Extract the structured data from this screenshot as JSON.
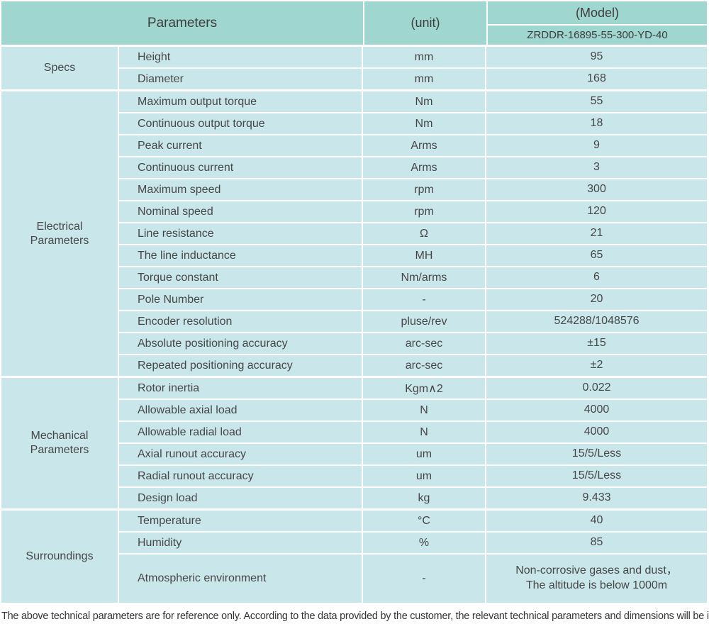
{
  "colors": {
    "header_bg": "#9fd7d0",
    "cell_bg": "#c9e6eb",
    "border": "#ffffff",
    "text": "#474747",
    "header_text": "#3d3d3d"
  },
  "header": {
    "parameters_label": "Parameters",
    "unit_label": "(unit)",
    "model_label": "(Model)",
    "model_value": "ZRDDR-16895-55-300-YD-40"
  },
  "sections": [
    {
      "name": "Specs",
      "rows": [
        {
          "param": "Height",
          "unit": "mm",
          "value": "95"
        },
        {
          "param": "Diameter",
          "unit": "mm",
          "value": "168"
        }
      ]
    },
    {
      "name": "Electrical\nParameters",
      "rows": [
        {
          "param": "Maximum output torque",
          "unit": "Nm",
          "value": "55"
        },
        {
          "param": "Continuous output torque",
          "unit": "Nm",
          "value": "18"
        },
        {
          "param": "Peak current",
          "unit": "Arms",
          "value": "9"
        },
        {
          "param": "Continuous current",
          "unit": "Arms",
          "value": "3"
        },
        {
          "param": "Maximum speed",
          "unit": "rpm",
          "value": "300"
        },
        {
          "param": "Nominal speed",
          "unit": "rpm",
          "value": "120"
        },
        {
          "param": "Line resistance",
          "unit": "Ω",
          "value": "21"
        },
        {
          "param": "The line inductance",
          "unit": "MH",
          "value": "65"
        },
        {
          "param": "Torque constant",
          "unit": "Nm/arms",
          "value": "6"
        },
        {
          "param": "Pole Number",
          "unit": "-",
          "value": "20"
        },
        {
          "param": "Encoder resolution",
          "unit": "pluse/rev",
          "value": "524288/1048576"
        },
        {
          "param": "Absolute positioning accuracy",
          "unit": "arc-sec",
          "value": "±15"
        },
        {
          "param": "Repeated positioning accuracy",
          "unit": "arc-sec",
          "value": "±2"
        }
      ]
    },
    {
      "name": "Mechanical\nParameters",
      "rows": [
        {
          "param": "Rotor inertia",
          "unit": "Kgm∧2",
          "value": "0.022"
        },
        {
          "param": "Allowable axial load",
          "unit": "N",
          "value": "4000"
        },
        {
          "param": "Allowable radial load",
          "unit": "N",
          "value": "4000"
        },
        {
          "param": "Axial runout accuracy",
          "unit": "um",
          "value": "15/5/Less"
        },
        {
          "param": "Radial runout accuracy",
          "unit": "um",
          "value": "15/5/Less"
        },
        {
          "param": "Design load",
          "unit": "kg",
          "value": "9.433"
        }
      ]
    },
    {
      "name": "Surroundings",
      "rows": [
        {
          "param": "Temperature",
          "unit": "°C",
          "value": "40"
        },
        {
          "param": "Humidity",
          "unit": "%",
          "value": "85"
        },
        {
          "param": "Atmospheric environment",
          "unit": "-",
          "value": "Non-corrosive gases and dust，\nThe altitude is below 1000m"
        }
      ]
    }
  ],
  "footer": {
    "note": "The above technical parameters are for reference only. According to the data provided by the customer, the relevant technical parameters and dimensions will be issued."
  }
}
